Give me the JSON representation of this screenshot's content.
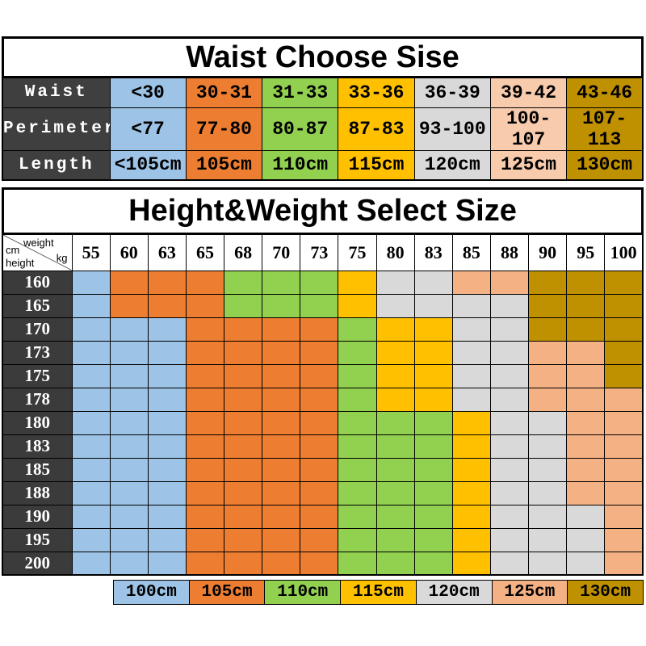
{
  "chart_data": [
    {
      "type": "table",
      "title": "Waist Choose Sise",
      "row_headers": [
        "Waist",
        "Perimeter",
        "Length"
      ],
      "rows": [
        [
          "<30",
          "30-31",
          "31-33",
          "33-36",
          "36-39",
          "39-42",
          "43-46"
        ],
        [
          "<77",
          "77-80",
          "80-87",
          "87-83",
          "93-100",
          "100-107",
          "107-113"
        ],
        [
          "<105cm",
          "105cm",
          "110cm",
          "115cm",
          "120cm",
          "125cm",
          "130cm"
        ]
      ],
      "column_colors": [
        "#9DC3E6",
        "#ED7D31",
        "#92D050",
        "#FFC000",
        "#D9D9D9",
        "#F8CBAD",
        "#BF9000"
      ],
      "header_bg": "#3F3F3F"
    },
    {
      "type": "heatmap",
      "title": "Height&Weight Select Size",
      "xlabel": "weight kg",
      "ylabel": "cm height",
      "corner": {
        "top_left": "cm",
        "top_right": "weight",
        "bottom_left": "height",
        "bottom_right": "kg"
      },
      "weights_kg": [
        "55",
        "60",
        "63",
        "65",
        "68",
        "70",
        "73",
        "75",
        "80",
        "83",
        "85",
        "88",
        "90",
        "95",
        "100"
      ],
      "heights_cm": [
        "160",
        "165",
        "170",
        "173",
        "175",
        "178",
        "180",
        "183",
        "185",
        "188",
        "190",
        "195",
        "200"
      ],
      "cell_sizes": [
        [
          "100cm",
          "105cm",
          "105cm",
          "105cm",
          "110cm",
          "110cm",
          "110cm",
          "115cm",
          "120cm",
          "120cm",
          "125cm",
          "125cm",
          "130cm",
          "130cm",
          "130cm"
        ],
        [
          "100cm",
          "105cm",
          "105cm",
          "105cm",
          "110cm",
          "110cm",
          "110cm",
          "115cm",
          "120cm",
          "120cm",
          "120cm",
          "120cm",
          "130cm",
          "130cm",
          "130cm"
        ],
        [
          "100cm",
          "100cm",
          "100cm",
          "105cm",
          "105cm",
          "105cm",
          "105cm",
          "110cm",
          "115cm",
          "115cm",
          "120cm",
          "120cm",
          "130cm",
          "130cm",
          "130cm"
        ],
        [
          "100cm",
          "100cm",
          "100cm",
          "105cm",
          "105cm",
          "105cm",
          "105cm",
          "110cm",
          "115cm",
          "115cm",
          "120cm",
          "120cm",
          "125cm",
          "125cm",
          "130cm"
        ],
        [
          "100cm",
          "100cm",
          "100cm",
          "105cm",
          "105cm",
          "105cm",
          "105cm",
          "110cm",
          "115cm",
          "115cm",
          "120cm",
          "120cm",
          "125cm",
          "125cm",
          "130cm"
        ],
        [
          "100cm",
          "100cm",
          "100cm",
          "105cm",
          "105cm",
          "105cm",
          "105cm",
          "110cm",
          "115cm",
          "115cm",
          "120cm",
          "120cm",
          "125cm",
          "125cm",
          "125cm"
        ],
        [
          "100cm",
          "100cm",
          "100cm",
          "105cm",
          "105cm",
          "105cm",
          "105cm",
          "110cm",
          "110cm",
          "110cm",
          "115cm",
          "120cm",
          "120cm",
          "125cm",
          "125cm"
        ],
        [
          "100cm",
          "100cm",
          "100cm",
          "105cm",
          "105cm",
          "105cm",
          "105cm",
          "110cm",
          "110cm",
          "110cm",
          "115cm",
          "120cm",
          "120cm",
          "125cm",
          "125cm"
        ],
        [
          "100cm",
          "100cm",
          "100cm",
          "105cm",
          "105cm",
          "105cm",
          "105cm",
          "110cm",
          "110cm",
          "110cm",
          "115cm",
          "120cm",
          "120cm",
          "125cm",
          "125cm"
        ],
        [
          "100cm",
          "100cm",
          "100cm",
          "105cm",
          "105cm",
          "105cm",
          "105cm",
          "110cm",
          "110cm",
          "110cm",
          "115cm",
          "120cm",
          "120cm",
          "125cm",
          "125cm"
        ],
        [
          "100cm",
          "100cm",
          "100cm",
          "105cm",
          "105cm",
          "105cm",
          "105cm",
          "110cm",
          "110cm",
          "110cm",
          "115cm",
          "120cm",
          "120cm",
          "120cm",
          "125cm"
        ],
        [
          "100cm",
          "100cm",
          "100cm",
          "105cm",
          "105cm",
          "105cm",
          "105cm",
          "110cm",
          "110cm",
          "110cm",
          "115cm",
          "120cm",
          "120cm",
          "120cm",
          "125cm"
        ],
        [
          "100cm",
          "100cm",
          "100cm",
          "105cm",
          "105cm",
          "105cm",
          "105cm",
          "110cm",
          "110cm",
          "110cm",
          "115cm",
          "120cm",
          "120cm",
          "120cm",
          "125cm"
        ]
      ],
      "palette": {
        "100cm": "#9DC3E6",
        "105cm": "#ED7D31",
        "110cm": "#92D050",
        "115cm": "#FFC000",
        "120cm": "#D9D9D9",
        "125cm": "#F4B183",
        "130cm": "#BF9000"
      },
      "legend": [
        "100cm",
        "105cm",
        "110cm",
        "115cm",
        "120cm",
        "125cm",
        "130cm"
      ],
      "row_header_bg": "#3B3B3B"
    }
  ]
}
